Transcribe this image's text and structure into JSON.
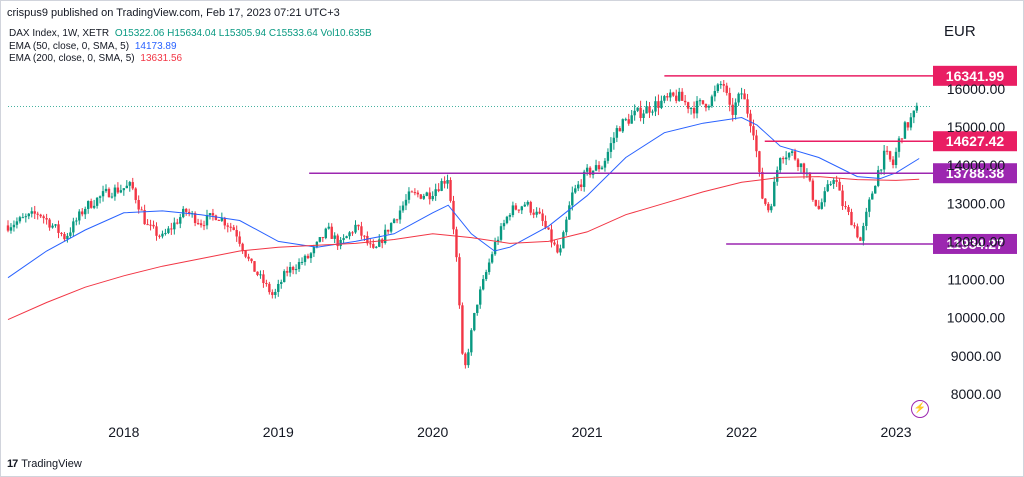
{
  "header": {
    "publisher": "crispus9 published on TradingView.com, Feb 17, 2023 07:21 UTC+3"
  },
  "legend": {
    "symbol": "DAX Index, 1W, XETR",
    "ohlc": "O15322.06 H15634.04 L15305.94 C15533.64 Vol10.635B",
    "ema50_label": "EMA (50, close, 0, SMA, 5)",
    "ema50_value": "14173.89",
    "ema200_label": "EMA (200, close, 0, SMA, 5)",
    "ema200_value": "13631.56"
  },
  "currency": "EUR",
  "footer": {
    "brand": "TradingView",
    "logo": "17"
  },
  "colors": {
    "up": "#089981",
    "down": "#f23645",
    "ema50": "#2962ff",
    "ema200": "#f23645",
    "resistance": "#e91e63",
    "support": "#9c27b0",
    "current": "#089981"
  },
  "chart_data": {
    "type": "candlestick",
    "title": "DAX Index, 1W, XETR",
    "y_axis": {
      "ticks": [
        8000,
        9000,
        10000,
        11000,
        12000,
        13000,
        14000,
        15000,
        16000
      ],
      "tick_labels": [
        "8000.00",
        "9000.00",
        "10000.00",
        "11000.00",
        "12000.00",
        "13000.00",
        "14000.00",
        "15000.00",
        "16000.00"
      ],
      "ylim": [
        7450,
        17150
      ]
    },
    "x_axis": {
      "ticks": [
        2018,
        2019,
        2020,
        2021,
        2022,
        2023
      ],
      "tick_labels": [
        "2018",
        "2019",
        "2020",
        "2021",
        "2022",
        "2023"
      ],
      "xlim": [
        2017.25,
        2023.22
      ]
    },
    "price_path": [
      [
        2017.25,
        12420
      ],
      [
        2017.45,
        12750
      ],
      [
        2017.62,
        12100
      ],
      [
        2017.75,
        12900
      ],
      [
        2017.9,
        13300
      ],
      [
        2018.05,
        13450
      ],
      [
        2018.15,
        12400
      ],
      [
        2018.25,
        12100
      ],
      [
        2018.4,
        12800
      ],
      [
        2018.5,
        12500
      ],
      [
        2018.6,
        12700
      ],
      [
        2018.72,
        12300
      ],
      [
        2018.82,
        11400
      ],
      [
        2018.97,
        10550
      ],
      [
        2019.05,
        11200
      ],
      [
        2019.2,
        11600
      ],
      [
        2019.32,
        12300
      ],
      [
        2019.4,
        11900
      ],
      [
        2019.5,
        12400
      ],
      [
        2019.62,
        11700
      ],
      [
        2019.72,
        12400
      ],
      [
        2019.85,
        13200
      ],
      [
        2019.98,
        13250
      ],
      [
        2020.1,
        13700
      ],
      [
        2020.15,
        11800
      ],
      [
        2020.2,
        8450
      ],
      [
        2020.28,
        10300
      ],
      [
        2020.4,
        11900
      ],
      [
        2020.5,
        12800
      ],
      [
        2020.6,
        13000
      ],
      [
        2020.7,
        12600
      ],
      [
        2020.82,
        11600
      ],
      [
        2020.9,
        13200
      ],
      [
        2021.0,
        13800
      ],
      [
        2021.1,
        14000
      ],
      [
        2021.2,
        15000
      ],
      [
        2021.3,
        15300
      ],
      [
        2021.45,
        15600
      ],
      [
        2021.58,
        15800
      ],
      [
        2021.68,
        15500
      ],
      [
        2021.8,
        15700
      ],
      [
        2021.88,
        16200
      ],
      [
        2021.93,
        15300
      ],
      [
        2022.0,
        15900
      ],
      [
        2022.08,
        14900
      ],
      [
        2022.13,
        13200
      ],
      [
        2022.18,
        12800
      ],
      [
        2022.25,
        14300
      ],
      [
        2022.33,
        14300
      ],
      [
        2022.42,
        13800
      ],
      [
        2022.46,
        13200
      ],
      [
        2022.5,
        12850
      ],
      [
        2022.55,
        13300
      ],
      [
        2022.6,
        13750
      ],
      [
        2022.65,
        13000
      ],
      [
        2022.72,
        12500
      ],
      [
        2022.77,
        12000
      ],
      [
        2022.82,
        12900
      ],
      [
        2022.88,
        13800
      ],
      [
        2022.93,
        14300
      ],
      [
        2022.98,
        14000
      ],
      [
        2023.03,
        14800
      ],
      [
        2023.08,
        15100
      ],
      [
        2023.13,
        15400
      ],
      [
        2023.15,
        15533
      ]
    ],
    "series": [
      {
        "name": "EMA (50, close, 0, SMA, 5)",
        "points": [
          [
            2017.25,
            11050
          ],
          [
            2017.5,
            11750
          ],
          [
            2017.75,
            12300
          ],
          [
            2018.0,
            12750
          ],
          [
            2018.25,
            12800
          ],
          [
            2018.5,
            12700
          ],
          [
            2018.75,
            12550
          ],
          [
            2019.0,
            12000
          ],
          [
            2019.25,
            11850
          ],
          [
            2019.5,
            12000
          ],
          [
            2019.75,
            12200
          ],
          [
            2020.0,
            12750
          ],
          [
            2020.1,
            12950
          ],
          [
            2020.25,
            12200
          ],
          [
            2020.4,
            11750
          ],
          [
            2020.5,
            11850
          ],
          [
            2020.75,
            12400
          ],
          [
            2021.0,
            13200
          ],
          [
            2021.25,
            14200
          ],
          [
            2021.5,
            14850
          ],
          [
            2021.75,
            15100
          ],
          [
            2022.0,
            15250
          ],
          [
            2022.1,
            15050
          ],
          [
            2022.25,
            14500
          ],
          [
            2022.5,
            14200
          ],
          [
            2022.75,
            13700
          ],
          [
            2022.9,
            13650
          ],
          [
            2023.0,
            13800
          ],
          [
            2023.15,
            14174
          ]
        ]
      },
      {
        "name": "EMA (200, close, 0, SMA, 5)",
        "points": [
          [
            2017.25,
            9950
          ],
          [
            2017.5,
            10400
          ],
          [
            2017.75,
            10800
          ],
          [
            2018.0,
            11100
          ],
          [
            2018.25,
            11350
          ],
          [
            2018.5,
            11550
          ],
          [
            2018.75,
            11750
          ],
          [
            2019.0,
            11850
          ],
          [
            2019.25,
            11900
          ],
          [
            2019.5,
            11950
          ],
          [
            2019.75,
            12050
          ],
          [
            2020.0,
            12200
          ],
          [
            2020.25,
            12100
          ],
          [
            2020.5,
            11950
          ],
          [
            2020.75,
            12000
          ],
          [
            2021.0,
            12250
          ],
          [
            2021.25,
            12700
          ],
          [
            2021.5,
            13000
          ],
          [
            2021.75,
            13300
          ],
          [
            2022.0,
            13550
          ],
          [
            2022.25,
            13680
          ],
          [
            2022.5,
            13700
          ],
          [
            2022.75,
            13620
          ],
          [
            2023.0,
            13600
          ],
          [
            2023.15,
            13632
          ]
        ]
      }
    ],
    "levels": [
      {
        "label": "16341.99",
        "value": 16341.99,
        "x_start": 2021.5,
        "kind": "resistance"
      },
      {
        "label": "14627.42",
        "value": 14627.42,
        "x_start": 2022.15,
        "kind": "resistance"
      },
      {
        "label": "13788.38",
        "value": 13788.38,
        "x_start": 2019.2,
        "kind": "support"
      },
      {
        "label": "11934.27",
        "value": 11934.27,
        "x_start": 2021.9,
        "kind": "support"
      }
    ],
    "last_close": 15533.64,
    "grid": false
  }
}
